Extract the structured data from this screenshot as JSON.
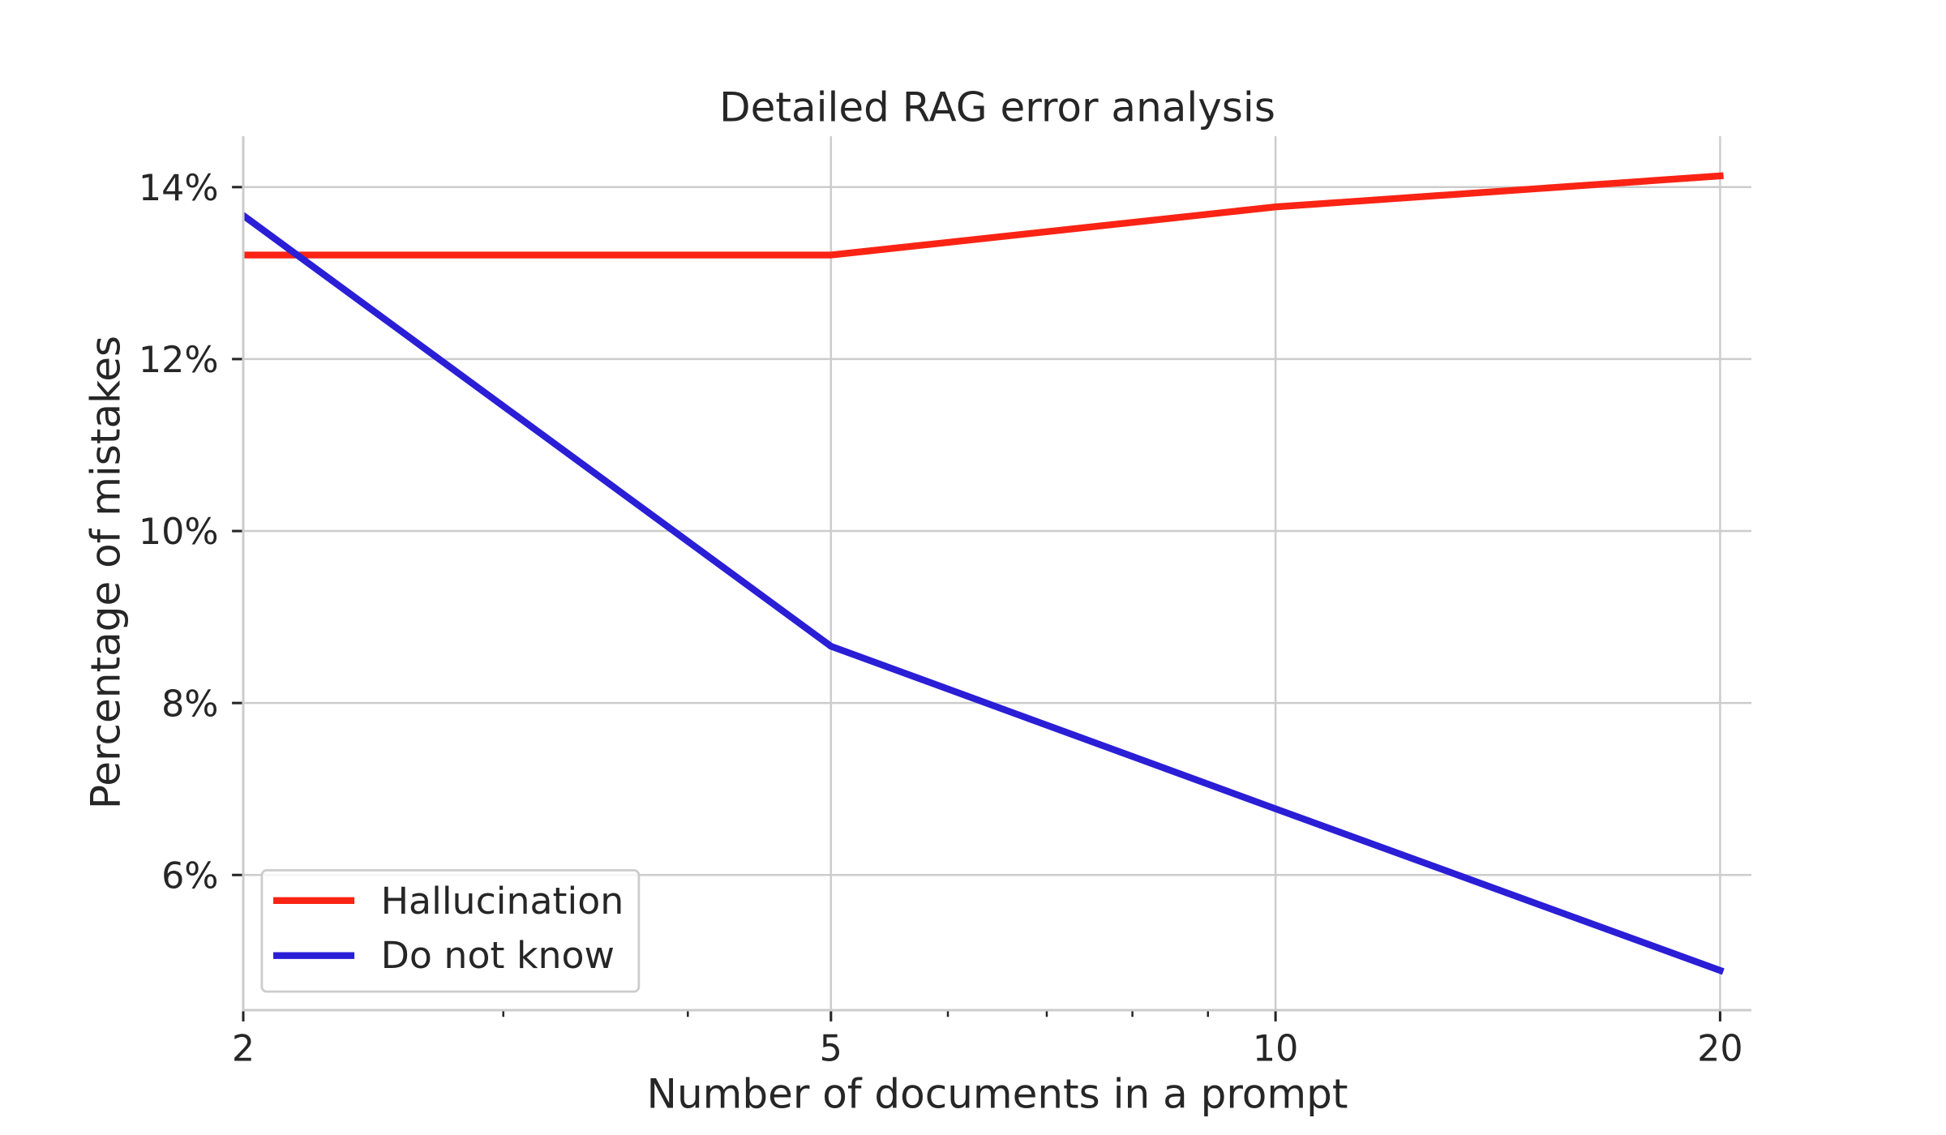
{
  "figure": {
    "background": "#ffffff"
  },
  "chart_data": {
    "type": "line",
    "title": "Detailed RAG error analysis",
    "xlabel": "Number of documents in a prompt",
    "ylabel": "Percentage of mistakes",
    "x": [
      2,
      5,
      10,
      20
    ],
    "series": [
      {
        "name": "Hallucination",
        "color": "#fa2314",
        "values": [
          13.21,
          13.21,
          13.77,
          14.13
        ]
      },
      {
        "name": "Do not know",
        "color": "#2a1ed6",
        "values": [
          13.67,
          8.66,
          6.77,
          4.89
        ]
      }
    ],
    "x_scale": "log",
    "xlim": [
      2,
      21
    ],
    "ylim": [
      4.428,
      14.592
    ],
    "x_ticks": [
      2,
      5,
      10,
      20
    ],
    "x_tick_labels": [
      "2",
      "5",
      "10",
      "20"
    ],
    "x_minor_ticks": [
      3,
      4,
      6,
      7,
      8,
      9
    ],
    "y_ticks": [
      6,
      8,
      10,
      12,
      14
    ],
    "y_tick_labels": [
      "6%",
      "8%",
      "10%",
      "12%",
      "14%"
    ],
    "grid": true,
    "legend_position": "lower left",
    "style": {
      "text_color": "#262626",
      "grid_color": "#cccccc",
      "spine_color": "#cccccc",
      "tick_color": "#262626",
      "legend_border_color": "#cccccc",
      "legend_background": "#ffffff"
    }
  }
}
